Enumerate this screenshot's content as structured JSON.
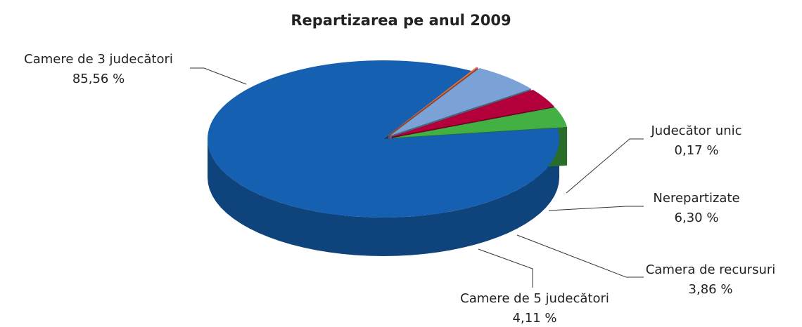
{
  "chart_data": {
    "type": "pie",
    "title": "Repartizarea pe anul 2009",
    "categories": [
      "Camere de 3 judecători",
      "Judecător unic",
      "Nerepartizate",
      "Camera de recursuri",
      "Camere de 5 judecători"
    ],
    "values": [
      85.56,
      0.17,
      6.3,
      3.86,
      4.11
    ],
    "value_labels": [
      "85,56 %",
      "0,17 %",
      "6,30 %",
      "3,86 %",
      "4,11 %"
    ],
    "colors": [
      "#1560b0",
      "#e8704a",
      "#7ba2d6",
      "#b4003a",
      "#42b043"
    ]
  }
}
